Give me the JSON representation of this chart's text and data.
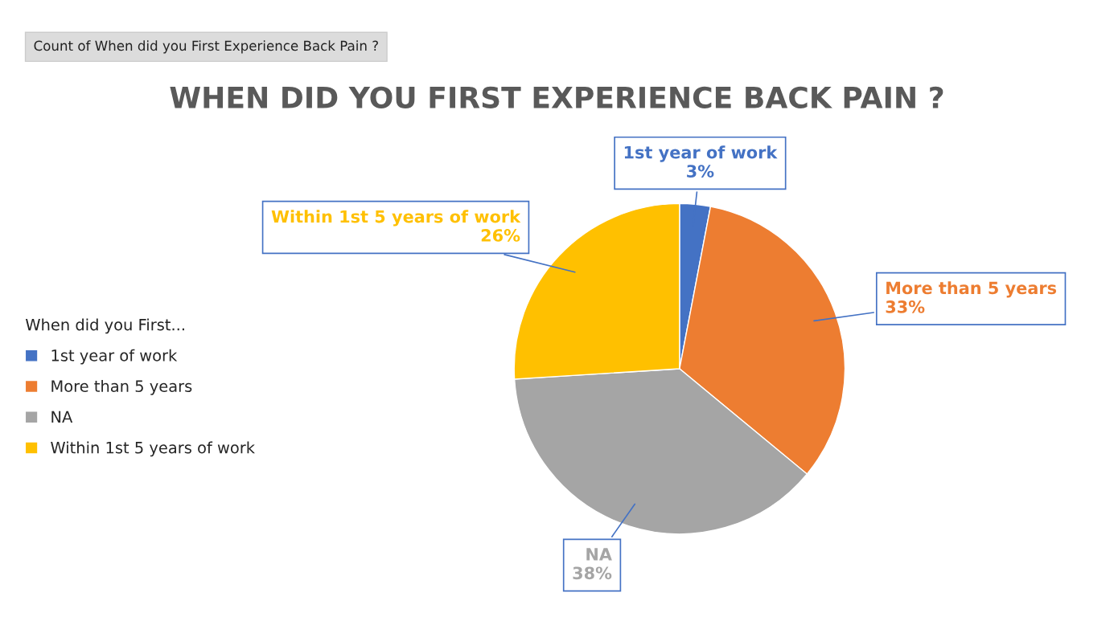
{
  "chart_data": {
    "type": "pie",
    "title": "WHEN DID YOU FIRST EXPERIENCE BACK PAIN ?",
    "categories": [
      "1st year of work",
      "More than 5 years",
      "NA",
      "Within 1st 5 years of work"
    ],
    "values": [
      3,
      33,
      38,
      26
    ],
    "colors": [
      "#4472c4",
      "#ed7d31",
      "#a5a5a5",
      "#ffc000"
    ],
    "value_labels": [
      "3%",
      "33%",
      "38%",
      "26%"
    ],
    "legend": "left",
    "legend_title": "When did you First...",
    "annotations": [
      "Count of When did you First Experience Back Pain ?"
    ]
  }
}
